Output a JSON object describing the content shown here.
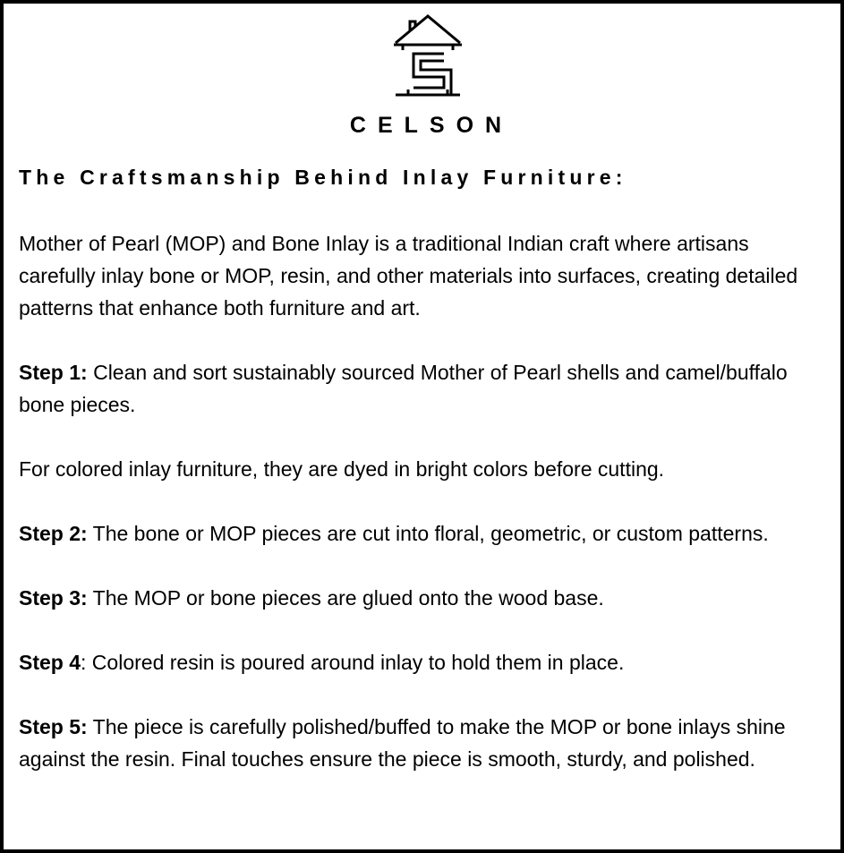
{
  "brand": {
    "name": "CELSON",
    "logo_icon": "house-s-logo-icon"
  },
  "heading": "The Craftsmanship Behind Inlay Furniture:",
  "intro": "Mother of Pearl (MOP) and Bone Inlay is a traditional Indian craft where artisans carefully inlay bone or MOP, resin, and other materials into surfaces, creating detailed patterns that enhance both furniture and art.",
  "steps": [
    {
      "label": "Step 1:",
      "text": " Clean and sort sustainably sourced Mother of Pearl shells and camel/buffalo bone pieces."
    },
    {
      "label": "",
      "text": "For colored inlay furniture, they are dyed in bright colors before cutting."
    },
    {
      "label": "Step 2:",
      "text": " The bone or MOP pieces are cut into floral, geometric, or custom patterns."
    },
    {
      "label": "Step 3:",
      "text": " The MOP or bone pieces are glued onto the wood base."
    },
    {
      "label": "Step 4",
      "text": ": Colored resin is poured around inlay to hold them in place."
    },
    {
      "label": "Step 5:",
      "text": " The piece is carefully polished/buffed to make the MOP or bone inlays shine against the resin. Final touches ensure the piece is smooth, sturdy, and polished."
    }
  ]
}
